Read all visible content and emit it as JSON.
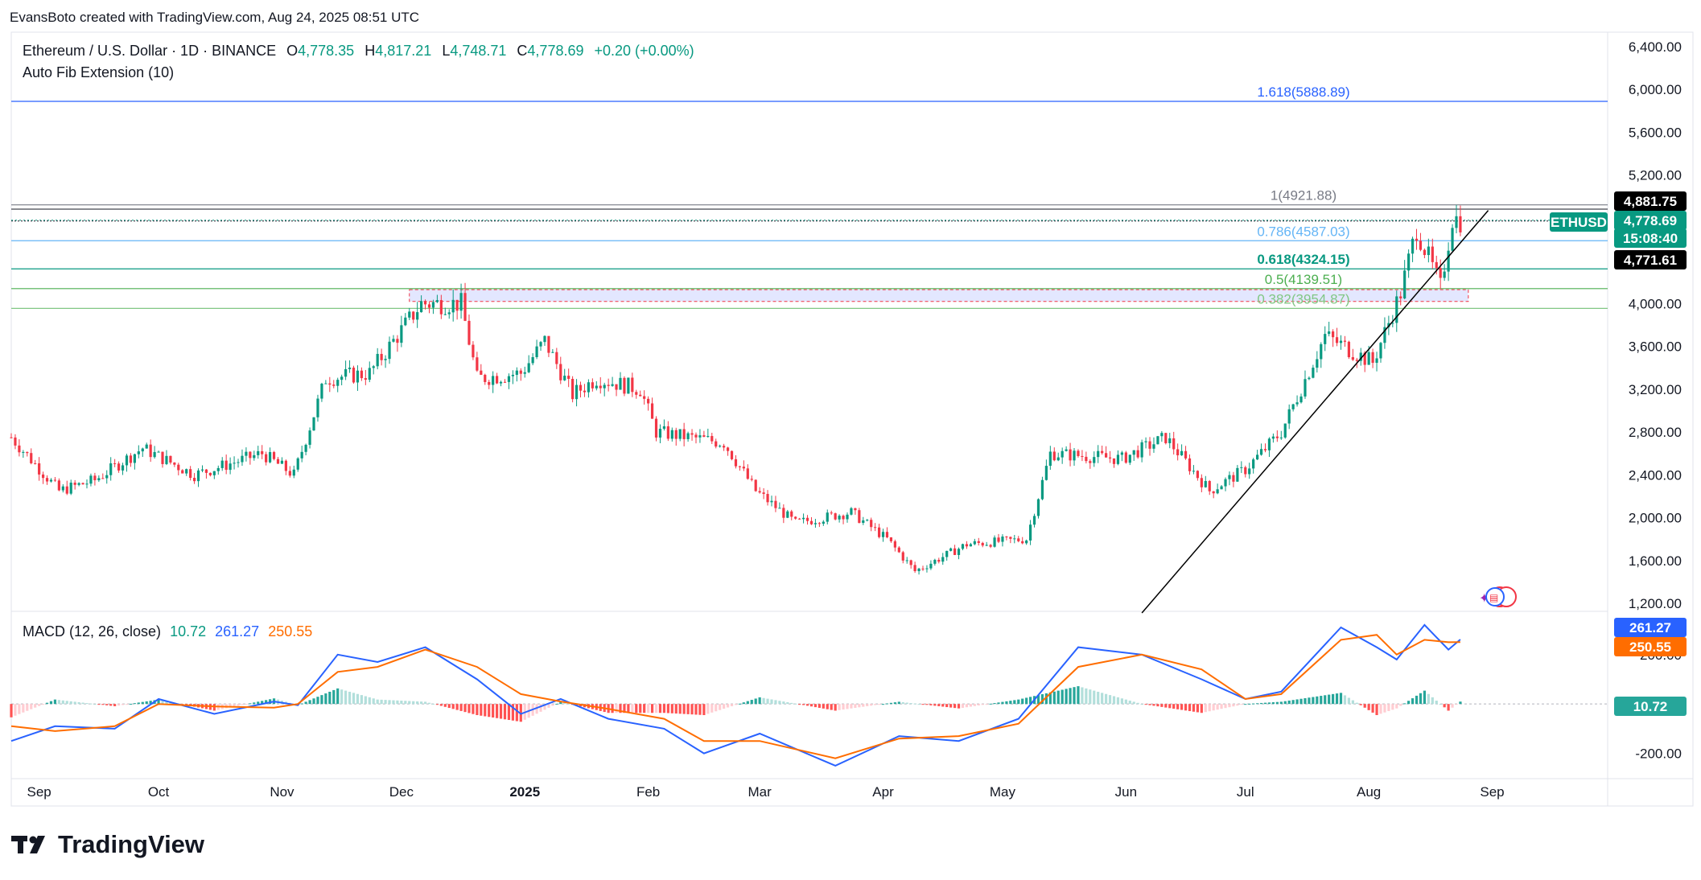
{
  "header": {
    "created_by": "EvansBoto created with TradingView.com, Aug 24, 2025 08:51 UTC"
  },
  "legend": {
    "symbol": "Ethereum / U.S. Dollar · 1D · BINANCE",
    "o_label": "O",
    "o": "4,778.35",
    "h_label": "H",
    "h": "4,817.21",
    "l_label": "L",
    "l": "4,748.71",
    "c_label": "C",
    "c": "4,778.69",
    "change": "+0.20 (+0.00%)",
    "indicator": "Auto Fib Extension (10)"
  },
  "macd_legend": {
    "label": "MACD (12, 26, close)",
    "hist": "10.72",
    "macd": "261.27",
    "signal": "250.55"
  },
  "brand": {
    "name": "TradingView"
  },
  "colors": {
    "up": "#089981",
    "down": "#f23645",
    "macd": "#2962ff",
    "signal": "#ff6d00",
    "trend": "#000000"
  },
  "chart_data": [
    {
      "type": "candlestick",
      "title": "Ethereum / U.S. Dollar · 1D · BINANCE",
      "x_range": [
        "2024-08-25",
        "2025-09-30"
      ],
      "ylim": [
        1200,
        6400
      ],
      "y_ticks": [
        "6,400.00",
        "6,000.00",
        "5,600.00",
        "5,200.00",
        "4,000.00",
        "3,600.00",
        "3,200.00",
        "2,800.00",
        "2,400.00",
        "2,000.00",
        "1,600.00",
        "1,200.00"
      ],
      "y_tick_values": [
        6400,
        6000,
        5600,
        5200,
        4000,
        3600,
        3200,
        2800,
        2400,
        2000,
        1600,
        1200
      ],
      "x_ticks": [
        "Sep",
        "Oct",
        "Nov",
        "Dec",
        "2025",
        "Feb",
        "Mar",
        "Apr",
        "May",
        "Jun",
        "Jul",
        "Aug",
        "Sep"
      ],
      "x_tick_dates": [
        "2024-09-01",
        "2024-10-01",
        "2024-11-01",
        "2024-12-01",
        "2025-01-01",
        "2025-02-01",
        "2025-03-01",
        "2025-04-01",
        "2025-05-01",
        "2025-06-01",
        "2025-07-01",
        "2025-08-01",
        "2025-09-01"
      ],
      "close_path": [
        [
          "2024-08-25",
          2750
        ],
        [
          "2024-09-06",
          2250
        ],
        [
          "2024-09-15",
          2350
        ],
        [
          "2024-09-27",
          2650
        ],
        [
          "2024-10-10",
          2400
        ],
        [
          "2024-10-27",
          2600
        ],
        [
          "2024-11-04",
          2400
        ],
        [
          "2024-11-12",
          3300
        ],
        [
          "2024-11-23",
          3350
        ],
        [
          "2024-12-06",
          4000
        ],
        [
          "2024-12-16",
          4000
        ],
        [
          "2024-12-20",
          3300
        ],
        [
          "2024-12-31",
          3350
        ],
        [
          "2025-01-06",
          3650
        ],
        [
          "2025-01-13",
          3150
        ],
        [
          "2025-01-19",
          3300
        ],
        [
          "2025-01-30",
          3200
        ],
        [
          "2025-02-03",
          2800
        ],
        [
          "2025-02-20",
          2700
        ],
        [
          "2025-02-28",
          2250
        ],
        [
          "2025-03-10",
          1950
        ],
        [
          "2025-03-24",
          2050
        ],
        [
          "2025-04-02",
          1800
        ],
        [
          "2025-04-09",
          1500
        ],
        [
          "2025-04-22",
          1750
        ],
        [
          "2025-05-07",
          1800
        ],
        [
          "2025-05-13",
          2600
        ],
        [
          "2025-05-31",
          2550
        ],
        [
          "2025-06-11",
          2750
        ],
        [
          "2025-06-22",
          2250
        ],
        [
          "2025-07-01",
          2450
        ],
        [
          "2025-07-10",
          2800
        ],
        [
          "2025-07-21",
          3700
        ],
        [
          "2025-08-02",
          3450
        ],
        [
          "2025-08-09",
          4100
        ],
        [
          "2025-08-13",
          4700
        ],
        [
          "2025-08-19",
          4150
        ],
        [
          "2025-08-22",
          4800
        ],
        [
          "2025-08-24",
          4778.69
        ]
      ],
      "fib_levels": [
        {
          "label": "1.618(5888.89)",
          "value": 5888.89,
          "color": "#2962ff"
        },
        {
          "label": "1(4921.88)",
          "value": 4921.88,
          "color": "#787b86"
        },
        {
          "label": "0.786(4587.03)",
          "value": 4587.03,
          "color": "#64b5f6"
        },
        {
          "label": "0.618(4324.15)",
          "value": 4324.15,
          "color": "#089981"
        },
        {
          "label": "0.5(4139.51)",
          "value": 4139.51,
          "color": "#4caf50"
        },
        {
          "label": "0.382(3954.87)",
          "value": 3954.87,
          "color": "#81c784"
        }
      ],
      "zone": {
        "from": "2024-12-03",
        "to": "2025-08-26",
        "low": 4020,
        "high": 4130
      },
      "trendline": {
        "start": [
          "2025-06-05",
          1110
        ],
        "end": [
          "2025-08-31",
          4870
        ]
      },
      "price_labels": [
        {
          "text": "4,881.75",
          "value": 4881.75,
          "bg": "#000000"
        },
        {
          "text": "4,778.69",
          "value": 4778.69,
          "bg": "#089981"
        },
        {
          "text": "15:08:40",
          "bg": "#089981"
        },
        {
          "text": "4,771.61",
          "value": 4771.61,
          "bg": "#000000"
        }
      ],
      "symbol_tag": "ETHUSD"
    },
    {
      "type": "line",
      "title": "MACD (12, 26, close)",
      "ylim": [
        -260,
        310
      ],
      "y_ticks": [
        "200.00",
        "-200.00"
      ],
      "y_tick_values": [
        200,
        -200
      ],
      "series": [
        {
          "name": "MACD",
          "color": "#2962ff",
          "points": [
            [
              "2024-08-25",
              -150
            ],
            [
              "2024-09-05",
              -90
            ],
            [
              "2024-09-20",
              -100
            ],
            [
              "2024-10-01",
              20
            ],
            [
              "2024-10-15",
              -40
            ],
            [
              "2024-10-30",
              10
            ],
            [
              "2024-11-05",
              -5
            ],
            [
              "2024-11-15",
              200
            ],
            [
              "2024-11-25",
              170
            ],
            [
              "2024-12-07",
              230
            ],
            [
              "2024-12-20",
              100
            ],
            [
              "2024-12-31",
              -40
            ],
            [
              "2025-01-10",
              20
            ],
            [
              "2025-01-22",
              -60
            ],
            [
              "2025-02-05",
              -100
            ],
            [
              "2025-02-15",
              -200
            ],
            [
              "2025-03-01",
              -120
            ],
            [
              "2025-03-20",
              -250
            ],
            [
              "2025-04-05",
              -130
            ],
            [
              "2025-04-20",
              -150
            ],
            [
              "2025-05-05",
              -60
            ],
            [
              "2025-05-20",
              230
            ],
            [
              "2025-06-05",
              200
            ],
            [
              "2025-06-20",
              100
            ],
            [
              "2025-07-01",
              20
            ],
            [
              "2025-07-10",
              50
            ],
            [
              "2025-07-25",
              310
            ],
            [
              "2025-08-03",
              230
            ],
            [
              "2025-08-08",
              180
            ],
            [
              "2025-08-15",
              320
            ],
            [
              "2025-08-21",
              220
            ],
            [
              "2025-08-24",
              261.27
            ]
          ]
        },
        {
          "name": "Signal",
          "color": "#ff6d00",
          "points": [
            [
              "2024-08-25",
              -90
            ],
            [
              "2024-09-05",
              -110
            ],
            [
              "2024-09-20",
              -90
            ],
            [
              "2024-10-01",
              0
            ],
            [
              "2024-10-15",
              -10
            ],
            [
              "2024-10-30",
              -15
            ],
            [
              "2024-11-05",
              0
            ],
            [
              "2024-11-15",
              130
            ],
            [
              "2024-11-25",
              150
            ],
            [
              "2024-12-07",
              220
            ],
            [
              "2024-12-20",
              150
            ],
            [
              "2024-12-31",
              40
            ],
            [
              "2025-01-10",
              10
            ],
            [
              "2025-01-22",
              -20
            ],
            [
              "2025-02-05",
              -60
            ],
            [
              "2025-02-15",
              -150
            ],
            [
              "2025-03-01",
              -150
            ],
            [
              "2025-03-20",
              -220
            ],
            [
              "2025-04-05",
              -140
            ],
            [
              "2025-04-20",
              -130
            ],
            [
              "2025-05-05",
              -80
            ],
            [
              "2025-05-20",
              150
            ],
            [
              "2025-06-05",
              200
            ],
            [
              "2025-06-20",
              140
            ],
            [
              "2025-07-01",
              20
            ],
            [
              "2025-07-10",
              40
            ],
            [
              "2025-07-25",
              260
            ],
            [
              "2025-08-03",
              280
            ],
            [
              "2025-08-08",
              200
            ],
            [
              "2025-08-15",
              260
            ],
            [
              "2025-08-21",
              250
            ],
            [
              "2025-08-24",
              250.55
            ]
          ]
        }
      ],
      "histogram_last": 10.72,
      "value_labels": [
        {
          "text": "261.27",
          "bg": "#2962ff"
        },
        {
          "text": "250.55",
          "bg": "#ff6d00"
        },
        {
          "text": "10.72",
          "bg": "#26a69a"
        }
      ]
    }
  ]
}
